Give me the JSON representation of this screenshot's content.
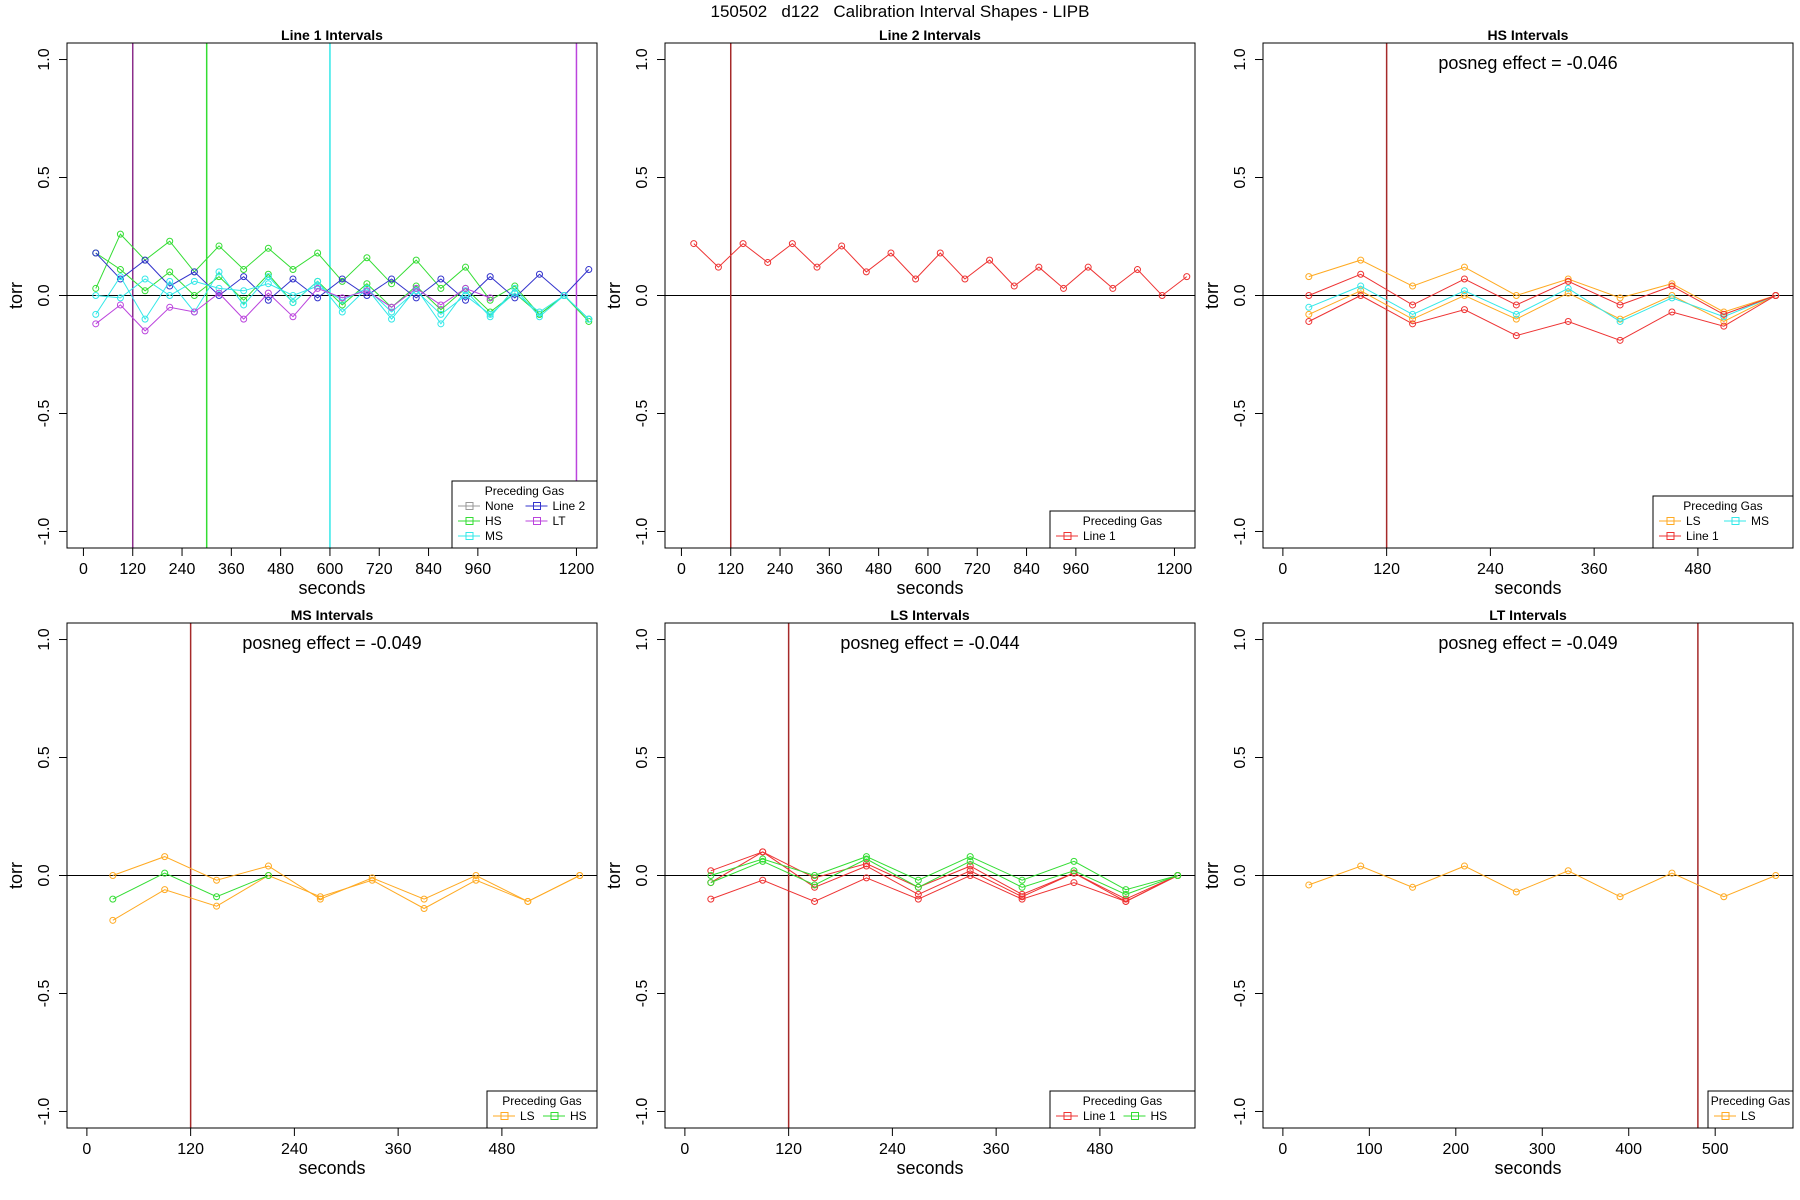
{
  "page": {
    "title": "150502   d122   Calibration Interval Shapes - LIPB"
  },
  "chart_data": [
    {
      "type": "line",
      "title": "Line 1 Intervals",
      "xlabel": "seconds",
      "ylabel": "torr",
      "xlim": [
        -40,
        1250
      ],
      "ylim": [
        -1.07,
        1.07
      ],
      "xticks": [
        0,
        120,
        240,
        360,
        480,
        600,
        720,
        840,
        960,
        1200
      ],
      "yticks": [
        -1.0,
        -0.5,
        0.0,
        0.5,
        1.0
      ],
      "hline": 0,
      "vlines": [
        {
          "x": 120,
          "color": "#8B2E8B"
        },
        {
          "x": 300,
          "color": "#33DD33"
        },
        {
          "x": 600,
          "color": "#33E8E8"
        },
        {
          "x": 1200,
          "color": "#BB44DD"
        }
      ],
      "annotation": "",
      "legend": {
        "title": "Preceding Gas",
        "placement": "bottom-right",
        "columns": 2,
        "entries": [
          {
            "label": "None",
            "color": "#999999"
          },
          {
            "label": "Line 2",
            "color": "#3333CC"
          },
          {
            "label": "HS",
            "color": "#33DD33"
          },
          {
            "label": "LT",
            "color": "#BB44DD"
          },
          {
            "label": "MS",
            "color": "#33E8E8"
          }
        ]
      },
      "series": [
        {
          "name": "HS",
          "color": "#33DD33",
          "x": [
            30,
            90,
            150,
            210,
            270,
            330,
            390,
            450,
            510,
            570,
            630,
            690,
            750,
            810,
            870,
            930,
            990,
            1050,
            1110,
            1170,
            1230
          ],
          "y": [
            0.03,
            0.26,
            0.15,
            0.23,
            0.1,
            0.21,
            0.11,
            0.2,
            0.11,
            0.18,
            0.06,
            0.16,
            0.05,
            0.15,
            0.03,
            0.12,
            -0.02,
            0.04,
            -0.08,
            0.0,
            -0.1
          ]
        },
        {
          "name": "HS",
          "color": "#33DD33",
          "x": [
            30,
            90,
            150,
            210,
            270,
            330,
            390,
            450,
            510,
            570,
            630,
            690,
            750,
            810,
            870,
            930,
            990,
            1050,
            1110,
            1170,
            1230
          ],
          "y": [
            0.18,
            0.11,
            0.02,
            0.1,
            0.0,
            0.08,
            -0.02,
            0.09,
            -0.03,
            0.06,
            -0.04,
            0.05,
            -0.05,
            0.04,
            -0.06,
            0.03,
            -0.07,
            0.01,
            -0.08,
            0.0,
            -0.11
          ]
        },
        {
          "name": "Line 2",
          "color": "#3333CC",
          "x": [
            30,
            90,
            150,
            210,
            270,
            330,
            390,
            450,
            510,
            570,
            630,
            690,
            750,
            810,
            870,
            930,
            990,
            1050,
            1110,
            1170,
            1230
          ],
          "y": [
            0.18,
            0.07,
            0.15,
            0.04,
            0.1,
            0.0,
            0.08,
            -0.02,
            0.07,
            -0.01,
            0.07,
            0.0,
            0.07,
            -0.01,
            0.07,
            -0.02,
            0.08,
            -0.01,
            0.09,
            0.0,
            0.11
          ]
        },
        {
          "name": "MS",
          "color": "#33E8E8",
          "x": [
            30,
            90,
            150,
            210,
            270,
            330,
            390,
            450,
            510,
            570,
            630,
            690,
            750,
            810,
            870,
            930,
            990,
            1050,
            1110,
            1170,
            1230
          ],
          "y": [
            -0.08,
            0.08,
            -0.1,
            0.06,
            -0.07,
            0.1,
            -0.04,
            0.08,
            -0.03,
            0.06,
            -0.07,
            0.03,
            -0.1,
            0.03,
            -0.12,
            0.02,
            -0.09,
            0.03,
            -0.09,
            0.0,
            -0.1
          ]
        },
        {
          "name": "MS",
          "color": "#33E8E8",
          "x": [
            30,
            90,
            150,
            210,
            270,
            330,
            390,
            450,
            510,
            570,
            630,
            690,
            750,
            810,
            870,
            930,
            990,
            1050,
            1110,
            1170,
            1230
          ],
          "y": [
            0.0,
            -0.01,
            0.07,
            0.0,
            0.06,
            0.03,
            0.02,
            0.05,
            0.0,
            0.04,
            -0.02,
            0.03,
            -0.07,
            0.02,
            -0.08,
            0.0,
            -0.08,
            0.01,
            -0.07,
            0.0,
            -0.1
          ]
        },
        {
          "name": "LT",
          "color": "#BB44DD",
          "x": [
            30,
            90,
            150,
            210,
            270,
            330,
            390,
            450,
            510,
            570,
            630,
            690,
            750,
            810,
            870,
            930,
            990
          ],
          "y": [
            -0.12,
            -0.04,
            -0.15,
            -0.05,
            -0.07,
            0.01,
            -0.1,
            0.01,
            -0.09,
            0.03,
            -0.01,
            0.02,
            -0.05,
            0.03,
            -0.04,
            0.03,
            -0.01
          ]
        }
      ]
    },
    {
      "type": "line",
      "title": "Line 2 Intervals",
      "xlabel": "seconds",
      "ylabel": "torr",
      "xlim": [
        -40,
        1250
      ],
      "ylim": [
        -1.07,
        1.07
      ],
      "xticks": [
        0,
        120,
        240,
        360,
        480,
        600,
        720,
        840,
        960,
        1200
      ],
      "yticks": [
        -1.0,
        -0.5,
        0.0,
        0.5,
        1.0
      ],
      "hline": 0,
      "vlines": [
        {
          "x": 120,
          "color": "#A52A2A"
        }
      ],
      "annotation": "",
      "legend": {
        "title": "Preceding Gas",
        "placement": "bottom-right",
        "columns": 1,
        "entries": [
          {
            "label": "Line 1",
            "color": "#EE3333"
          }
        ]
      },
      "series": [
        {
          "name": "Line 1",
          "color": "#EE3333",
          "x": [
            30,
            90,
            150,
            210,
            270,
            330,
            390,
            450,
            510,
            570,
            630,
            690,
            750,
            810,
            870,
            930,
            990,
            1050,
            1110,
            1170,
            1230
          ],
          "y": [
            0.22,
            0.12,
            0.22,
            0.14,
            0.22,
            0.12,
            0.21,
            0.1,
            0.18,
            0.07,
            0.18,
            0.07,
            0.15,
            0.04,
            0.12,
            0.03,
            0.12,
            0.03,
            0.11,
            0.0,
            0.08
          ]
        }
      ]
    },
    {
      "type": "line",
      "title": "HS Intervals",
      "xlabel": "seconds",
      "ylabel": "torr",
      "xlim": [
        -23,
        590
      ],
      "ylim": [
        -1.07,
        1.07
      ],
      "xticks": [
        0,
        120,
        240,
        360,
        480
      ],
      "yticks": [
        -1.0,
        -0.5,
        0.0,
        0.5,
        1.0
      ],
      "hline": 0,
      "vlines": [
        {
          "x": 120,
          "color": "#A52A2A"
        }
      ],
      "annotation": "posneg effect = -0.046",
      "legend": {
        "title": "Preceding Gas",
        "placement": "bottom-right",
        "columns": 2,
        "entries": [
          {
            "label": "LS",
            "color": "#FFAA22"
          },
          {
            "label": "MS",
            "color": "#33E8E8"
          },
          {
            "label": "Line 1",
            "color": "#EE3333"
          }
        ]
      },
      "series": [
        {
          "name": "LS",
          "color": "#FFAA22",
          "x": [
            30,
            90,
            150,
            210,
            270,
            330,
            390,
            450,
            510,
            570
          ],
          "y": [
            0.08,
            0.15,
            0.04,
            0.12,
            0.0,
            0.07,
            -0.01,
            0.05,
            -0.07,
            0.0
          ]
        },
        {
          "name": "LS",
          "color": "#FFAA22",
          "x": [
            30,
            90,
            150,
            210,
            270,
            330,
            390,
            450,
            510,
            570
          ],
          "y": [
            -0.08,
            0.02,
            -0.1,
            0.0,
            -0.1,
            0.01,
            -0.1,
            0.0,
            -0.11,
            0.0
          ]
        },
        {
          "name": "MS",
          "color": "#33E8E8",
          "x": [
            30,
            90,
            150,
            210,
            270,
            330,
            390,
            450,
            510,
            570
          ],
          "y": [
            -0.05,
            0.04,
            -0.08,
            0.02,
            -0.08,
            0.03,
            -0.11,
            -0.01,
            -0.09,
            0.0
          ]
        },
        {
          "name": "Line 1",
          "color": "#EE3333",
          "x": [
            30,
            90,
            150,
            210,
            270,
            330,
            390,
            450,
            510,
            570
          ],
          "y": [
            0.0,
            0.09,
            -0.04,
            0.07,
            -0.04,
            0.06,
            -0.04,
            0.04,
            -0.08,
            0.0
          ]
        },
        {
          "name": "Line 1",
          "color": "#EE3333",
          "x": [
            30,
            90,
            150,
            210,
            270,
            330,
            390,
            450,
            510,
            570
          ],
          "y": [
            -0.11,
            0.0,
            -0.12,
            -0.06,
            -0.17,
            -0.11,
            -0.19,
            -0.07,
            -0.13,
            0.0
          ]
        }
      ]
    },
    {
      "type": "line",
      "title": "MS Intervals",
      "xlabel": "seconds",
      "ylabel": "torr",
      "xlim": [
        -23,
        590
      ],
      "ylim": [
        -1.07,
        1.07
      ],
      "xticks": [
        0,
        120,
        240,
        360,
        480
      ],
      "yticks": [
        -1.0,
        -0.5,
        0.0,
        0.5,
        1.0
      ],
      "hline": 0,
      "vlines": [
        {
          "x": 120,
          "color": "#A52A2A"
        }
      ],
      "annotation": "posneg effect = -0.049",
      "legend": {
        "title": "Preceding Gas",
        "placement": "bottom-right",
        "columns": 2,
        "entries": [
          {
            "label": "LS",
            "color": "#FFAA22"
          },
          {
            "label": "HS",
            "color": "#33DD33"
          }
        ]
      },
      "series": [
        {
          "name": "LS",
          "color": "#FFAA22",
          "x": [
            30,
            90,
            150,
            210,
            270,
            330,
            390,
            450,
            510,
            570
          ],
          "y": [
            0.0,
            0.08,
            -0.02,
            0.04,
            -0.1,
            -0.01,
            -0.1,
            0.0,
            -0.11,
            0.0
          ]
        },
        {
          "name": "LS",
          "color": "#FFAA22",
          "x": [
            30,
            90,
            150,
            210,
            270,
            330,
            390,
            450,
            510,
            570
          ],
          "y": [
            -0.19,
            -0.06,
            -0.13,
            0.0,
            -0.09,
            -0.02,
            -0.14,
            -0.02,
            -0.11,
            0.0
          ]
        },
        {
          "name": "HS",
          "color": "#33DD33",
          "x": [
            30,
            90,
            150,
            210
          ],
          "y": [
            -0.1,
            0.01,
            -0.09,
            0.0
          ]
        }
      ]
    },
    {
      "type": "line",
      "title": "LS Intervals",
      "xlabel": "seconds",
      "ylabel": "torr",
      "xlim": [
        -23,
        590
      ],
      "ylim": [
        -1.07,
        1.07
      ],
      "xticks": [
        0,
        120,
        240,
        360,
        480
      ],
      "yticks": [
        -1.0,
        -0.5,
        0.0,
        0.5,
        1.0
      ],
      "hline": 0,
      "vlines": [
        {
          "x": 120,
          "color": "#A52A2A"
        }
      ],
      "annotation": "posneg effect = -0.044",
      "legend": {
        "title": "Preceding Gas",
        "placement": "bottom-right",
        "columns": 2,
        "entries": [
          {
            "label": "Line 1",
            "color": "#EE3333"
          },
          {
            "label": "HS",
            "color": "#33DD33"
          }
        ]
      },
      "series": [
        {
          "name": "Line 1",
          "color": "#EE3333",
          "x": [
            30,
            90,
            150,
            210,
            270,
            330,
            390,
            450,
            510,
            570
          ],
          "y": [
            0.02,
            0.1,
            -0.01,
            0.05,
            -0.05,
            0.04,
            -0.08,
            0.01,
            -0.1,
            0.0
          ]
        },
        {
          "name": "Line 1",
          "color": "#EE3333",
          "x": [
            30,
            90,
            150,
            210,
            270,
            330,
            390,
            450,
            510,
            570
          ],
          "y": [
            -0.1,
            -0.02,
            -0.11,
            -0.01,
            -0.1,
            0.0,
            -0.1,
            -0.03,
            -0.11,
            0.0
          ]
        },
        {
          "name": "Line 1",
          "color": "#EE3333",
          "x": [
            30,
            90,
            150,
            210,
            270,
            330,
            390,
            450,
            510,
            570
          ],
          "y": [
            -0.03,
            0.1,
            -0.05,
            0.04,
            -0.08,
            0.02,
            -0.09,
            0.01,
            -0.11,
            0.0
          ]
        },
        {
          "name": "HS",
          "color": "#33DD33",
          "x": [
            30,
            90,
            150,
            210,
            270,
            330,
            390,
            450,
            510,
            570
          ],
          "y": [
            0.0,
            0.07,
            0.0,
            0.08,
            -0.02,
            0.08,
            -0.02,
            0.06,
            -0.06,
            0.0
          ]
        },
        {
          "name": "HS",
          "color": "#33DD33",
          "x": [
            30,
            90,
            150,
            210,
            270,
            330,
            390,
            450,
            510,
            570
          ],
          "y": [
            -0.03,
            0.06,
            -0.04,
            0.07,
            -0.05,
            0.06,
            -0.05,
            0.02,
            -0.08,
            0.0
          ]
        }
      ]
    },
    {
      "type": "line",
      "title": "LT Intervals",
      "xlabel": "seconds",
      "ylabel": "torr",
      "xlim": [
        -23,
        590
      ],
      "ylim": [
        -1.07,
        1.07
      ],
      "xticks": [
        0,
        100,
        200,
        300,
        400,
        500
      ],
      "yticks": [
        -1.0,
        -0.5,
        0.0,
        0.5,
        1.0
      ],
      "hline": 0,
      "vlines": [
        {
          "x": 480,
          "color": "#A52A2A"
        }
      ],
      "annotation": "posneg effect = -0.049",
      "legend": {
        "title": "Preceding Gas",
        "placement": "bottom-right",
        "columns": 1,
        "entries": [
          {
            "label": "LS",
            "color": "#FFAA22"
          }
        ]
      },
      "series": [
        {
          "name": "LS",
          "color": "#FFAA22",
          "x": [
            30,
            90,
            150,
            210,
            270,
            330,
            390,
            450,
            510,
            570
          ],
          "y": [
            -0.04,
            0.04,
            -0.05,
            0.04,
            -0.07,
            0.02,
            -0.09,
            0.01,
            -0.09,
            0.0
          ]
        }
      ]
    }
  ]
}
